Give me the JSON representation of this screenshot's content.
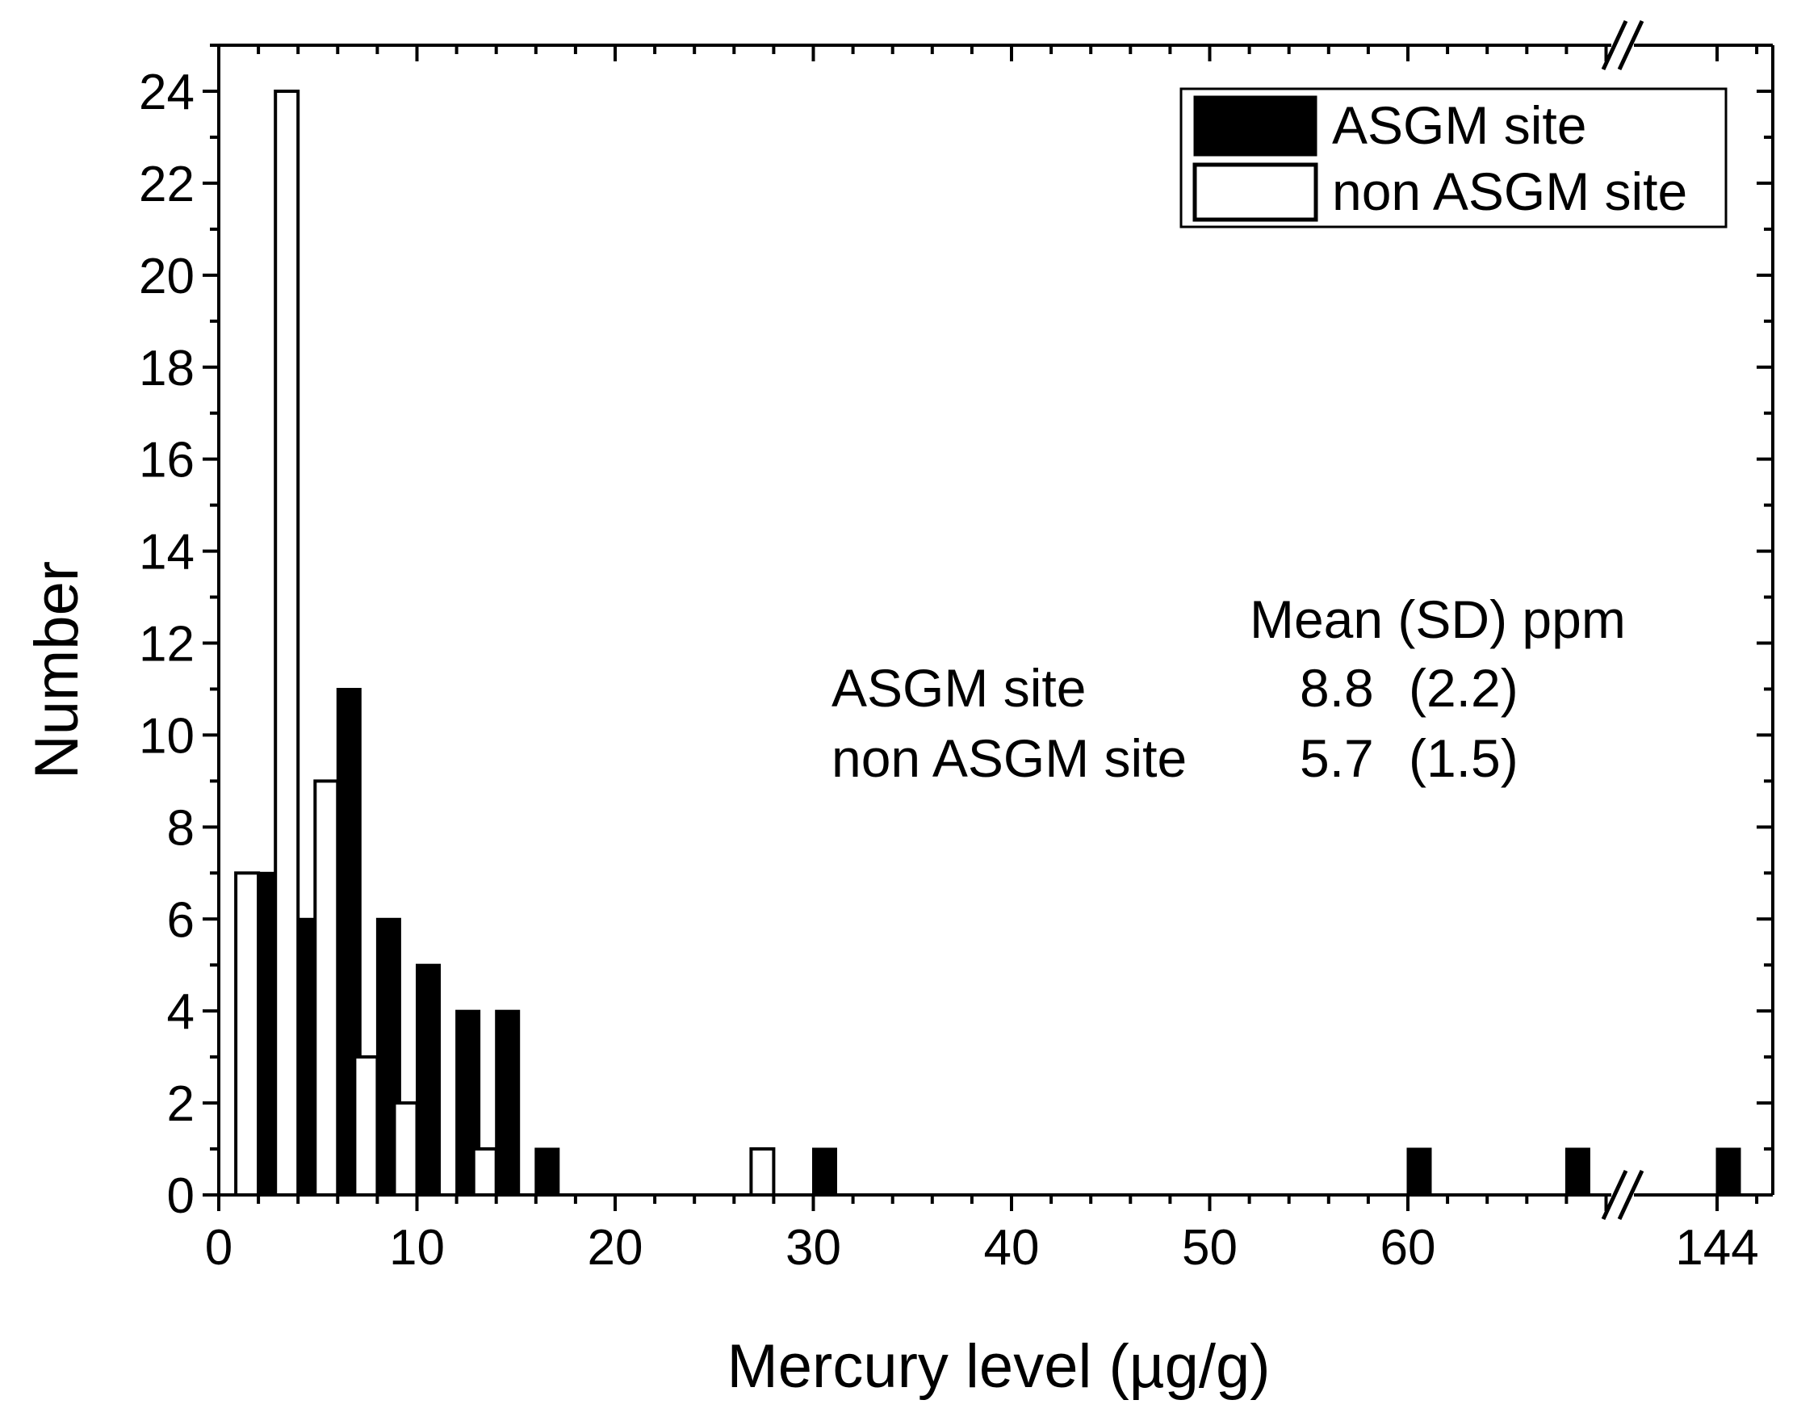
{
  "chart_data": {
    "type": "bar",
    "xlabel": "Mercury level (µg/g)",
    "ylabel": "Number",
    "ylim": [
      0,
      25
    ],
    "xlim": [
      0,
      78
    ],
    "x_break": {
      "after": 71.5,
      "resume_at": 144,
      "label": "//"
    },
    "x_ticks": [
      {
        "value": 0,
        "label": "0"
      },
      {
        "value": 10,
        "label": "10"
      },
      {
        "value": 20,
        "label": "20"
      },
      {
        "value": 30,
        "label": "30"
      },
      {
        "value": 40,
        "label": "40"
      },
      {
        "value": 50,
        "label": "50"
      },
      {
        "value": 60,
        "label": "60"
      },
      {
        "value": 144,
        "label": "144"
      }
    ],
    "y_ticks": [
      0,
      2,
      4,
      6,
      8,
      10,
      12,
      14,
      16,
      18,
      20,
      22,
      24
    ],
    "bin_width": 2,
    "bins": [
      "2-4",
      "4-6",
      "6-8",
      "8-10",
      "10-12",
      "12-14",
      "14-16",
      "16-18",
      "28-30",
      "30-32",
      "60-62",
      "68-70",
      "144-146"
    ],
    "series": [
      {
        "name": "ASGM site",
        "style": "filled",
        "color": "#000000",
        "points": [
          {
            "x": 2,
            "y": 7
          },
          {
            "x": 4,
            "y": 6
          },
          {
            "x": 6,
            "y": 11
          },
          {
            "x": 8,
            "y": 6
          },
          {
            "x": 10,
            "y": 5
          },
          {
            "x": 12,
            "y": 4
          },
          {
            "x": 14,
            "y": 4
          },
          {
            "x": 16,
            "y": 1
          },
          {
            "x": 30,
            "y": 1
          },
          {
            "x": 60,
            "y": 1
          },
          {
            "x": 68,
            "y": 1
          },
          {
            "x": 144,
            "y": 1
          }
        ]
      },
      {
        "name": "non ASGM site",
        "style": "hollow",
        "color": "#ffffff",
        "points": [
          {
            "x": 2,
            "y": 7
          },
          {
            "x": 4,
            "y": 24
          },
          {
            "x": 6,
            "y": 9
          },
          {
            "x": 8,
            "y": 3
          },
          {
            "x": 10,
            "y": 2
          },
          {
            "x": 12,
            "y": 0
          },
          {
            "x": 14,
            "y": 1
          },
          {
            "x": 28,
            "y": 1
          }
        ]
      }
    ],
    "legend": {
      "placement": "top-right",
      "entries": [
        "ASGM site",
        "non ASGM site"
      ]
    },
    "annotation": {
      "header": "Mean (SD) ppm",
      "rows": [
        {
          "label": "ASGM site",
          "mean": "8.8",
          "sd": "(2.2)"
        },
        {
          "label": "non ASGM site",
          "mean": "5.7",
          "sd": "(1.5)"
        }
      ]
    },
    "grid": false
  }
}
